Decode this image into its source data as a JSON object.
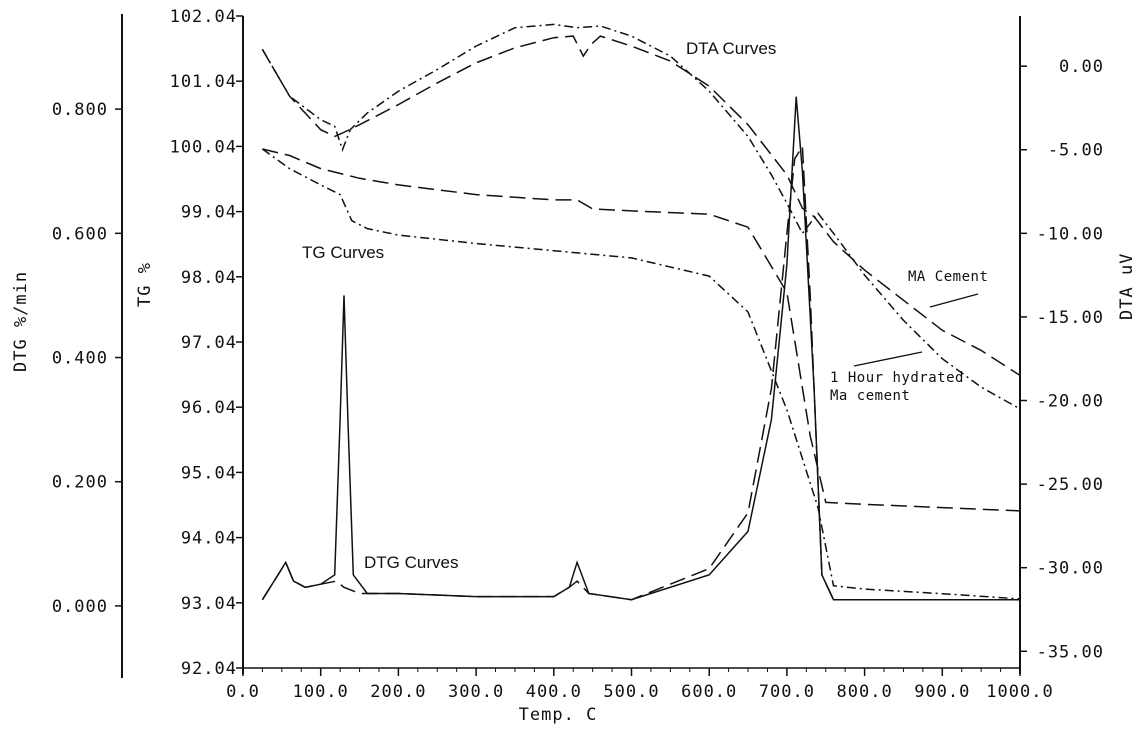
{
  "chart_data": {
    "type": "line",
    "x_label": "Temp. C",
    "x_range": [
      0,
      1000
    ],
    "x_ticks": [
      "0.0",
      "100.0",
      "200.0",
      "300.0",
      "400.0",
      "500.0",
      "600.0",
      "700.0",
      "800.0",
      "900.0",
      "1000.0"
    ],
    "tg_axis": {
      "label": "TG %",
      "range": [
        92.04,
        102.04
      ],
      "ticks": [
        "102.04",
        "101.04",
        "100.04",
        "99.04",
        "98.04",
        "97.04",
        "96.04",
        "95.04",
        "94.04",
        "93.04",
        "92.04"
      ]
    },
    "dtg_axis": {
      "label": "DTG %/min",
      "range": [
        -0.1,
        0.95
      ],
      "ticks": [
        "0.800",
        "0.600",
        "0.400",
        "0.200",
        "0.000"
      ]
    },
    "dta_axis": {
      "label": "DTA uV",
      "range": [
        -36.0,
        3.0
      ],
      "ticks": [
        "0.00",
        "-5.00",
        "-10.00",
        "-15.00",
        "-20.00",
        "-25.00",
        "-30.00",
        "-35.00"
      ]
    },
    "annotations": [
      "DTA  Curves",
      "TG Curves",
      "DTG Curves",
      "MA Cement",
      "1 Hour hydrated",
      "Ma cement"
    ],
    "series": [
      {
        "group": "DTA",
        "axis": "dta",
        "style": "dash-dot",
        "points": [
          [
            25,
            1.0
          ],
          [
            60,
            -1.8
          ],
          [
            100,
            -3.2
          ],
          [
            118,
            -3.6
          ],
          [
            128,
            -5.0
          ],
          [
            138,
            -3.8
          ],
          [
            160,
            -2.8
          ],
          [
            200,
            -1.5
          ],
          [
            250,
            -0.2
          ],
          [
            300,
            1.2
          ],
          [
            350,
            2.3
          ],
          [
            400,
            2.5
          ],
          [
            430,
            2.3
          ],
          [
            460,
            2.4
          ],
          [
            500,
            1.8
          ],
          [
            550,
            0.6
          ],
          [
            600,
            -1.5
          ],
          [
            650,
            -4.2
          ],
          [
            680,
            -6.5
          ],
          [
            700,
            -8.2
          ],
          [
            720,
            -10.0
          ],
          [
            740,
            -8.8
          ],
          [
            760,
            -10.0
          ],
          [
            800,
            -12.5
          ],
          [
            850,
            -15.2
          ],
          [
            900,
            -17.5
          ],
          [
            950,
            -19.2
          ],
          [
            1000,
            -20.5
          ]
        ]
      },
      {
        "group": "DTA",
        "axis": "dta",
        "style": "dash",
        "points": [
          [
            25,
            1.0
          ],
          [
            60,
            -1.8
          ],
          [
            100,
            -3.8
          ],
          [
            118,
            -4.2
          ],
          [
            128,
            -4.0
          ],
          [
            150,
            -3.5
          ],
          [
            200,
            -2.3
          ],
          [
            250,
            -1.0
          ],
          [
            300,
            0.2
          ],
          [
            350,
            1.1
          ],
          [
            400,
            1.7
          ],
          [
            425,
            1.8
          ],
          [
            438,
            0.6
          ],
          [
            448,
            1.3
          ],
          [
            460,
            1.8
          ],
          [
            500,
            1.2
          ],
          [
            550,
            0.3
          ],
          [
            600,
            -1.2
          ],
          [
            650,
            -3.5
          ],
          [
            700,
            -6.5
          ],
          [
            720,
            -8.5
          ],
          [
            735,
            -9.0
          ],
          [
            760,
            -10.5
          ],
          [
            800,
            -12.2
          ],
          [
            850,
            -14.0
          ],
          [
            900,
            -15.8
          ],
          [
            950,
            -17.0
          ],
          [
            1000,
            -18.5
          ]
        ]
      },
      {
        "group": "TG",
        "axis": "tg",
        "style": "dash",
        "points": [
          [
            25,
            100.0
          ],
          [
            60,
            99.9
          ],
          [
            100,
            99.7
          ],
          [
            150,
            99.55
          ],
          [
            200,
            99.45
          ],
          [
            300,
            99.3
          ],
          [
            400,
            99.22
          ],
          [
            430,
            99.22
          ],
          [
            450,
            99.08
          ],
          [
            500,
            99.05
          ],
          [
            600,
            99.0
          ],
          [
            650,
            98.8
          ],
          [
            700,
            97.8
          ],
          [
            730,
            95.6
          ],
          [
            750,
            94.58
          ],
          [
            800,
            94.55
          ],
          [
            900,
            94.5
          ],
          [
            1000,
            94.45
          ]
        ]
      },
      {
        "group": "TG",
        "axis": "tg",
        "style": "dash-dot",
        "points": [
          [
            25,
            100.0
          ],
          [
            60,
            99.7
          ],
          [
            100,
            99.45
          ],
          [
            125,
            99.3
          ],
          [
            140,
            98.9
          ],
          [
            160,
            98.78
          ],
          [
            200,
            98.68
          ],
          [
            300,
            98.55
          ],
          [
            400,
            98.44
          ],
          [
            500,
            98.33
          ],
          [
            600,
            98.05
          ],
          [
            650,
            97.5
          ],
          [
            700,
            96.0
          ],
          [
            740,
            94.5
          ],
          [
            760,
            93.3
          ],
          [
            800,
            93.25
          ],
          [
            900,
            93.18
          ],
          [
            1000,
            93.1
          ]
        ]
      },
      {
        "group": "DTG",
        "axis": "dtg",
        "style": "dash",
        "points": [
          [
            25,
            0.01
          ],
          [
            45,
            0.05
          ],
          [
            55,
            0.07
          ],
          [
            65,
            0.04
          ],
          [
            80,
            0.03
          ],
          [
            100,
            0.035
          ],
          [
            120,
            0.04
          ],
          [
            130,
            0.03
          ],
          [
            150,
            0.02
          ],
          [
            200,
            0.02
          ],
          [
            300,
            0.015
          ],
          [
            400,
            0.015
          ],
          [
            420,
            0.03
          ],
          [
            430,
            0.04
          ],
          [
            445,
            0.02
          ],
          [
            500,
            0.01
          ],
          [
            600,
            0.06
          ],
          [
            650,
            0.15
          ],
          [
            680,
            0.35
          ],
          [
            700,
            0.6
          ],
          [
            710,
            0.72
          ],
          [
            720,
            0.74
          ],
          [
            730,
            0.5
          ],
          [
            745,
            0.05
          ],
          [
            760,
            0.01
          ],
          [
            800,
            0.01
          ],
          [
            900,
            0.01
          ],
          [
            1000,
            0.01
          ]
        ]
      },
      {
        "group": "DTG",
        "axis": "dtg",
        "style": "solid",
        "points": [
          [
            25,
            0.01
          ],
          [
            45,
            0.05
          ],
          [
            55,
            0.07
          ],
          [
            65,
            0.04
          ],
          [
            80,
            0.03
          ],
          [
            100,
            0.035
          ],
          [
            118,
            0.05
          ],
          [
            125,
            0.3
          ],
          [
            130,
            0.5
          ],
          [
            135,
            0.3
          ],
          [
            142,
            0.05
          ],
          [
            160,
            0.02
          ],
          [
            200,
            0.02
          ],
          [
            300,
            0.015
          ],
          [
            400,
            0.015
          ],
          [
            420,
            0.03
          ],
          [
            430,
            0.07
          ],
          [
            445,
            0.02
          ],
          [
            500,
            0.01
          ],
          [
            600,
            0.05
          ],
          [
            650,
            0.12
          ],
          [
            680,
            0.3
          ],
          [
            700,
            0.55
          ],
          [
            712,
            0.82
          ],
          [
            720,
            0.7
          ],
          [
            735,
            0.35
          ],
          [
            745,
            0.05
          ],
          [
            760,
            0.01
          ],
          [
            800,
            0.01
          ],
          [
            900,
            0.01
          ],
          [
            1000,
            0.01
          ]
        ]
      }
    ]
  }
}
